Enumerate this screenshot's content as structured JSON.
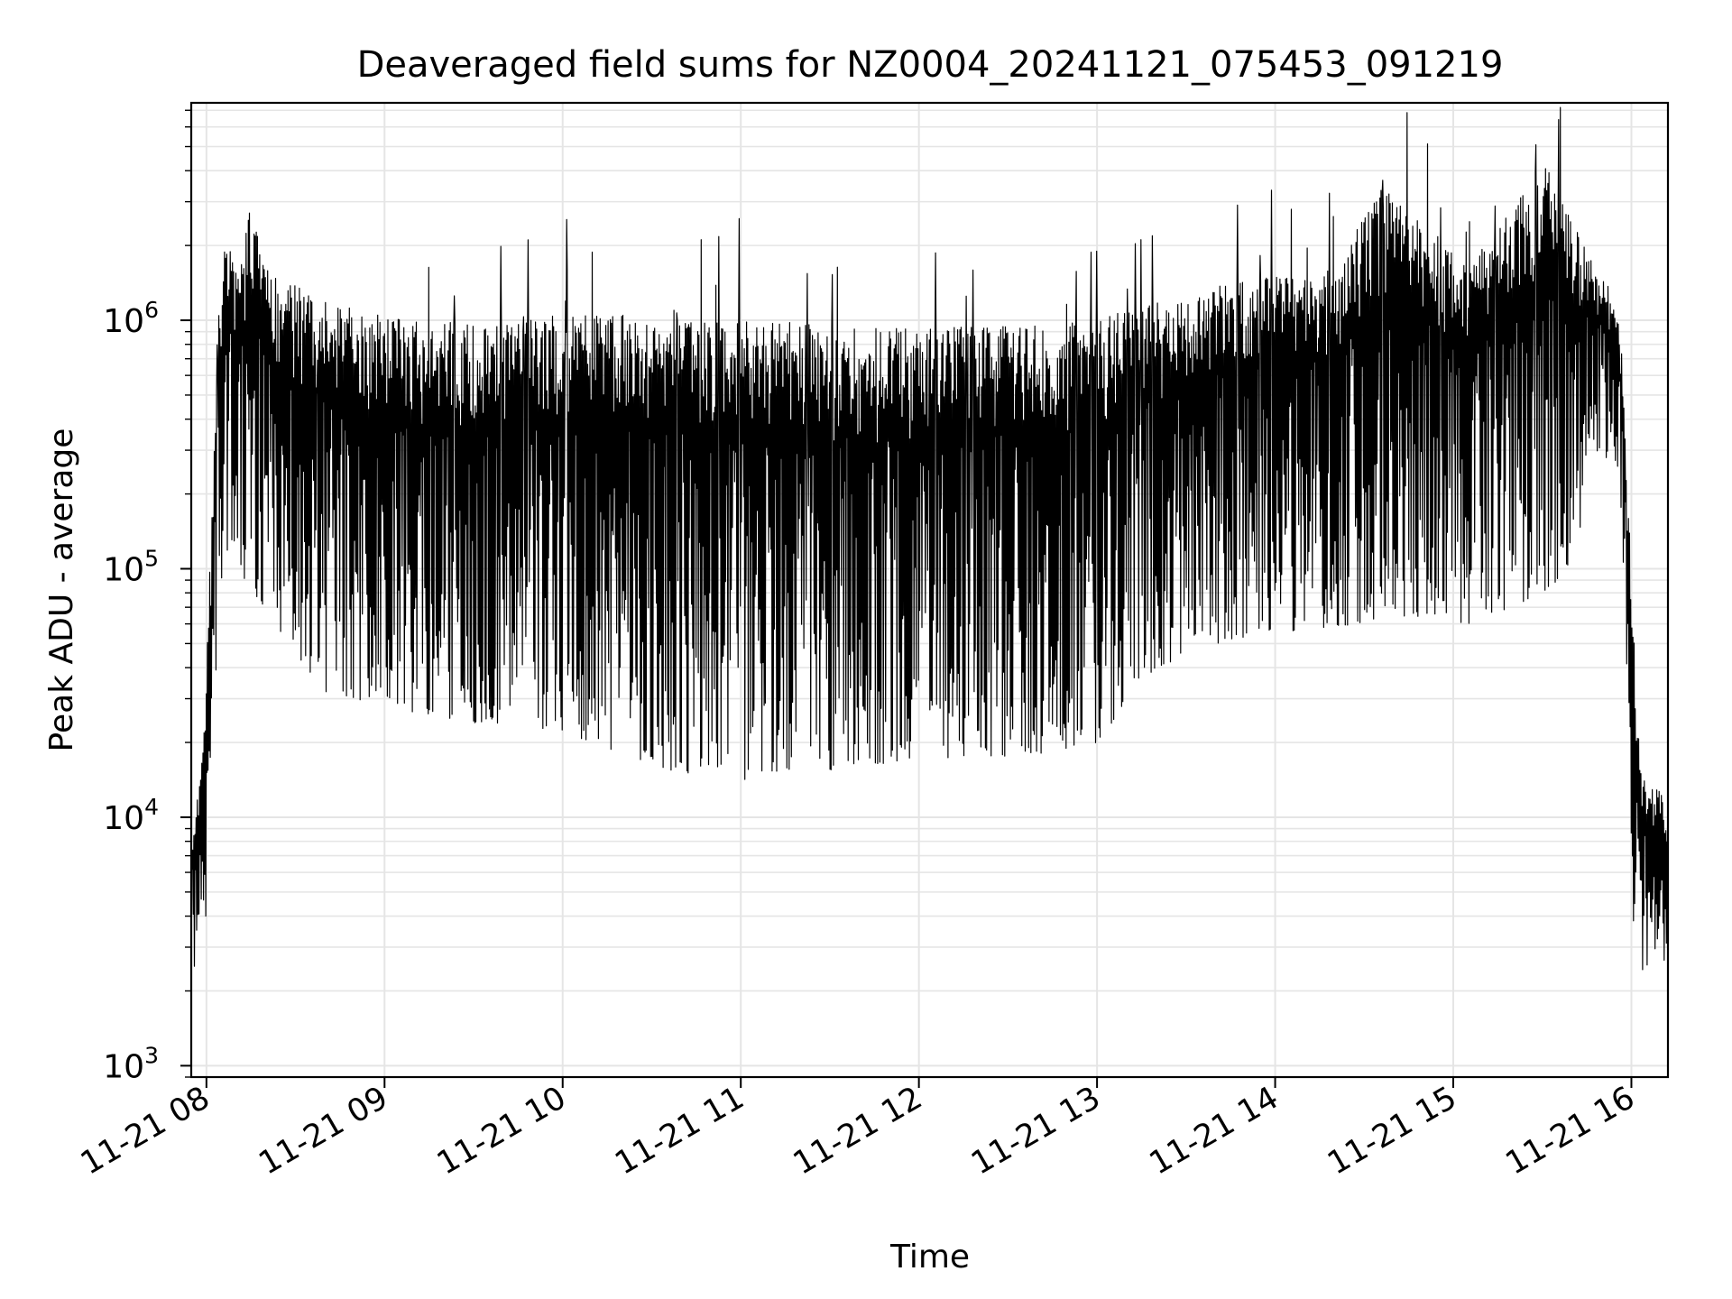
{
  "chart_data": {
    "type": "line",
    "title": "Deaveraged field sums for NZ0004_20241121_075453_091219",
    "xlabel": "Time",
    "ylabel": "Peak ADU - average",
    "yscale": "log",
    "grid": true,
    "legend": "none",
    "line_color": "#000000",
    "xlim": [
      "2024-11-21 07:54:53",
      "2024-11-21 16:12:19"
    ],
    "ylim": [
      900,
      7500000
    ],
    "x_ticks": [
      "11-21 08",
      "11-21 09",
      "11-21 10",
      "11-21 11",
      "11-21 12",
      "11-21 13",
      "11-21 14",
      "11-21 15",
      "11-21 16"
    ],
    "y_ticks": [
      {
        "value": 1000,
        "base": "10",
        "exp": "3"
      },
      {
        "value": 10000,
        "base": "10",
        "exp": "4"
      },
      {
        "value": 100000,
        "base": "10",
        "exp": "5"
      },
      {
        "value": 1000000,
        "base": "10",
        "exp": "6"
      }
    ],
    "series": [
      {
        "x": [
          "2024-11-21 07:55:00",
          "2024-11-21 07:58:00",
          "2024-11-21 08:00:00",
          "2024-11-21 08:03:00",
          "2024-11-21 08:06:00",
          "2024-11-21 08:09:00",
          "2024-11-21 08:12:00",
          "2024-11-21 08:15:00",
          "2024-11-21 08:20:00",
          "2024-11-21 08:25:00",
          "2024-11-21 08:30:00",
          "2024-11-21 08:35:00",
          "2024-11-21 08:40:00",
          "2024-11-21 08:50:00",
          "2024-11-21 09:00:00",
          "2024-11-21 09:20:00",
          "2024-11-21 09:40:00",
          "2024-11-21 10:00:00",
          "2024-11-21 10:20:00",
          "2024-11-21 10:40:00",
          "2024-11-21 11:00:00",
          "2024-11-21 11:20:00",
          "2024-11-21 11:40:00",
          "2024-11-21 12:00:00",
          "2024-11-21 12:20:00",
          "2024-11-21 12:40:00",
          "2024-11-21 13:00:00",
          "2024-11-21 13:20:00",
          "2024-11-21 13:40:00",
          "2024-11-21 14:00:00",
          "2024-11-21 14:20:00",
          "2024-11-21 14:35:00",
          "2024-11-21 14:50:00",
          "2024-11-21 15:05:00",
          "2024-11-21 15:20:00",
          "2024-11-21 15:30:00",
          "2024-11-21 15:40:00",
          "2024-11-21 15:48:00",
          "2024-11-21 15:53:00",
          "2024-11-21 15:57:00",
          "2024-11-21 16:00:00",
          "2024-11-21 16:03:00",
          "2024-11-21 16:06:00",
          "2024-11-21 16:09:00",
          "2024-11-21 16:12:00"
        ],
        "high": [
          9000,
          14000,
          40000,
          450000,
          2400000,
          1800000,
          1700000,
          3300000,
          1600000,
          1500000,
          1400000,
          1300000,
          1200000,
          1100000,
          1050000,
          1000000,
          1000000,
          1050000,
          1050000,
          1000000,
          1000000,
          980000,
          960000,
          950000,
          950000,
          960000,
          1000000,
          1200000,
          1400000,
          1500000,
          1600000,
          3500000,
          2500000,
          1700000,
          2800000,
          4500000,
          2500000,
          1600000,
          1400000,
          800000,
          90000,
          16000,
          12000,
          15000,
          9000
        ],
        "low": [
          1800,
          4000,
          4000,
          25000,
          120000,
          100000,
          90000,
          80000,
          70000,
          55000,
          45000,
          38000,
          32000,
          30000,
          28000,
          25000,
          23000,
          22000,
          18000,
          15000,
          14000,
          15000,
          16000,
          17000,
          17000,
          18000,
          20000,
          40000,
          50000,
          55000,
          58000,
          60000,
          65000,
          60000,
          70000,
          80000,
          100000,
          300000,
          250000,
          150000,
          3000,
          2300,
          2400,
          3000,
          2500
        ]
      }
    ]
  }
}
